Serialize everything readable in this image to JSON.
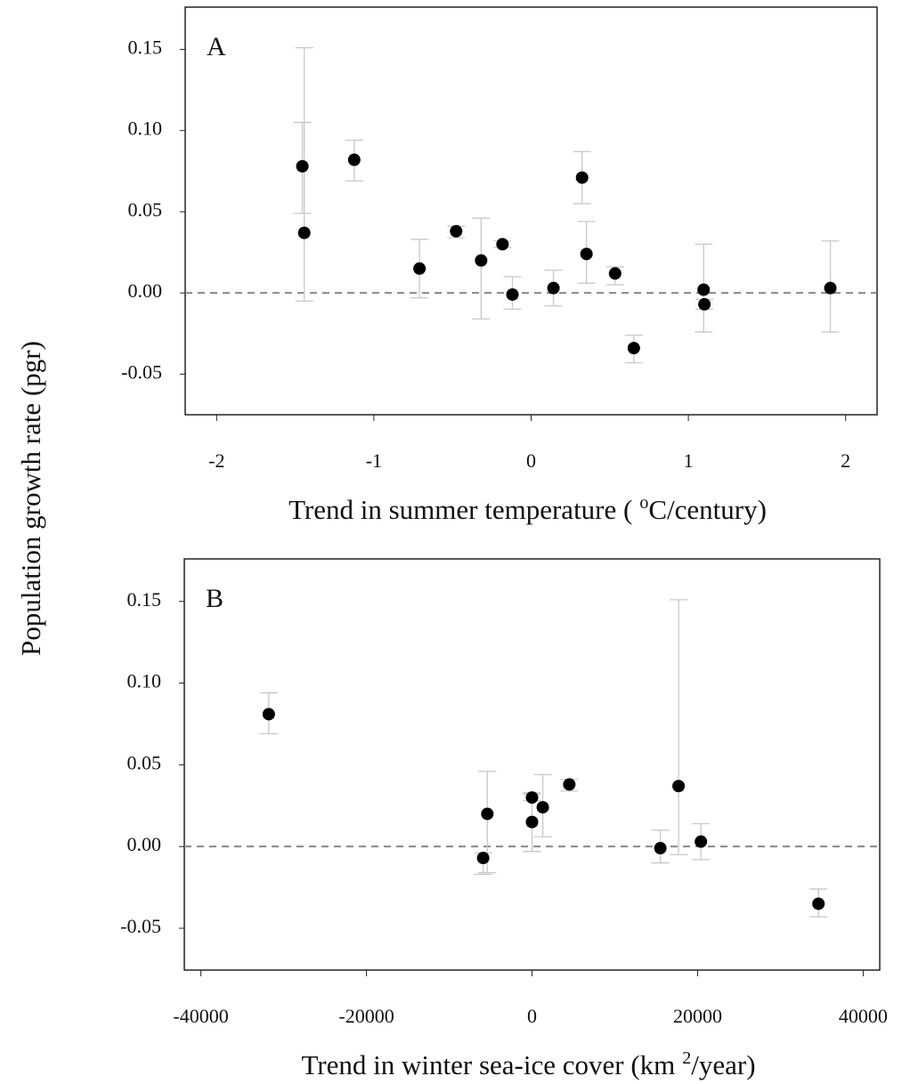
{
  "chart_data": [
    {
      "type": "scatter",
      "panel_label": "A",
      "ylabel": "Population growth rate (pgr)",
      "xlabel": "Trend in summer temperature (",
      "xlabel_sup": "o",
      "xlabel_end": "C/century)",
      "xlim": [
        -2.2,
        2.2
      ],
      "ylim": [
        -0.075,
        0.176
      ],
      "xticks": [
        -2,
        -1,
        0,
        1,
        2
      ],
      "yticks": [
        {
          "value": 0.15,
          "label": "0.15"
        },
        {
          "value": 0.1,
          "label": "0.10"
        },
        {
          "value": 0.05,
          "label": "0.05"
        },
        {
          "value": 0,
          "label": "0.00"
        },
        {
          "value": -0.05,
          "label": "-0.05"
        }
      ],
      "ref_line": 0,
      "series": [
        {
          "name": "populations",
          "color": "#000000",
          "error_color": "#c8c8c8",
          "x": [
            -1.455,
            -1.443,
            -1.125,
            -0.71,
            -0.477,
            -0.318,
            -0.182,
            -0.119,
            0.142,
            0.324,
            0.352,
            0.534,
            0.653,
            1.097,
            1.102,
            1.903
          ],
          "values": [
            0.078,
            0.037,
            0.082,
            0.015,
            0.038,
            0.02,
            0.03,
            -0.001,
            0.003,
            0.071,
            0.024,
            0.012,
            -0.034,
            0.002,
            -0.007,
            0.003
          ],
          "ci_low": [
            0.049,
            -0.005,
            0.069,
            -0.003,
            0.034,
            -0.016,
            0.028,
            -0.01,
            -0.008,
            0.055,
            0.006,
            0.005,
            -0.043,
            -0.024,
            -0.01,
            -0.024
          ],
          "ci_high": [
            0.105,
            0.151,
            0.094,
            0.033,
            0.041,
            0.046,
            0.032,
            0.01,
            0.014,
            0.087,
            0.044,
            0.016,
            -0.026,
            0.03,
            -0.004,
            0.032
          ]
        }
      ]
    },
    {
      "type": "scatter",
      "panel_label": "B",
      "xlabel": "Trend in winter sea-ice cover (km",
      "xlabel_sup": "2",
      "xlabel_end": "/year)",
      "xlim": [
        -42000,
        42000
      ],
      "ylim": [
        -0.0756,
        0.176
      ],
      "xticks": [
        -40000,
        -20000,
        0,
        20000,
        40000
      ],
      "yticks": [
        {
          "value": 0.15,
          "label": "0.15"
        },
        {
          "value": 0.1,
          "label": "0.10"
        },
        {
          "value": 0.05,
          "label": "0.05"
        },
        {
          "value": 0,
          "label": "0.00"
        },
        {
          "value": -0.05,
          "label": "-0.05"
        }
      ],
      "ref_line": 0,
      "series": [
        {
          "name": "populations",
          "color": "#000000",
          "error_color": "#c8c8c8",
          "x": [
            -31800,
            -5900,
            -5400,
            0,
            0,
            1300,
            4500,
            15500,
            17700,
            20400,
            34600
          ],
          "values": [
            0.081,
            -0.007,
            0.02,
            0.03,
            0.015,
            0.024,
            0.038,
            -0.001,
            0.037,
            0.003,
            -0.035
          ],
          "ci_low": [
            0.069,
            -0.017,
            -0.016,
            0.028,
            -0.003,
            0.006,
            0.034,
            -0.01,
            -0.005,
            -0.008,
            -0.043
          ],
          "ci_high": [
            0.094,
            -0.004,
            0.046,
            0.032,
            0.033,
            0.044,
            0.041,
            0.01,
            0.151,
            0.014,
            -0.026
          ]
        }
      ]
    }
  ]
}
